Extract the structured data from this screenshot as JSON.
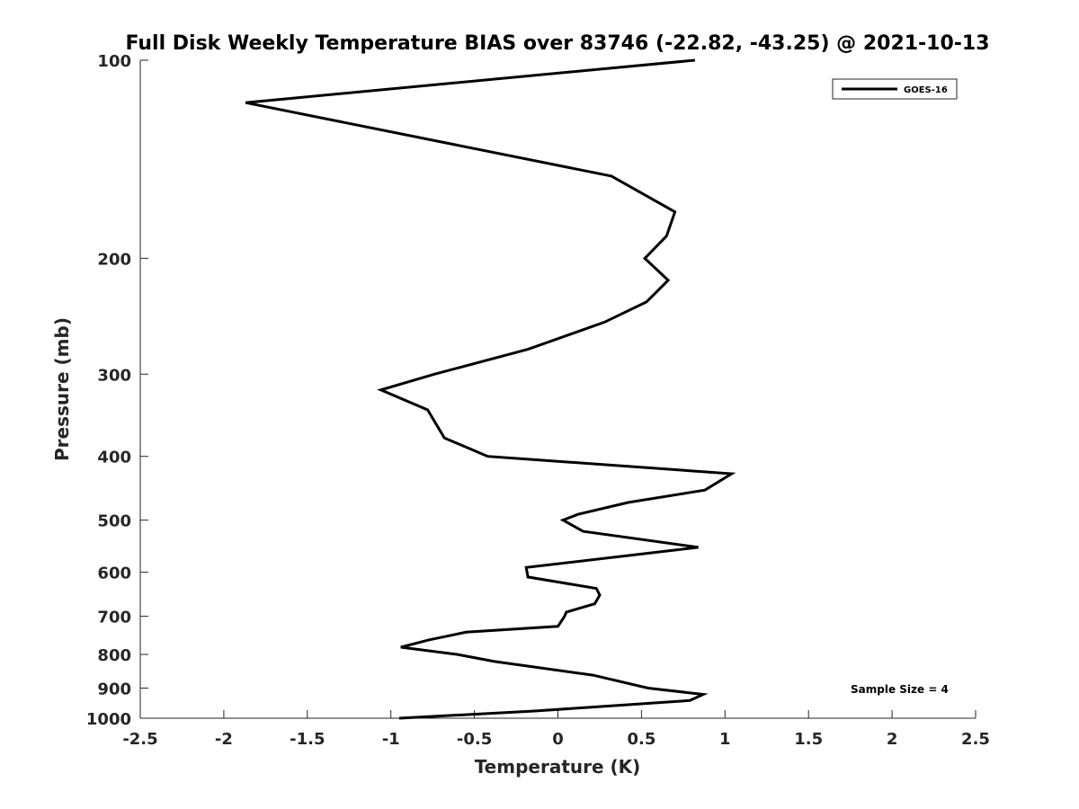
{
  "chart_data": {
    "type": "line",
    "title": "Full Disk Weekly Temperature BIAS over 83746 (-22.82, -43.25) @ 2021-10-13",
    "xlabel": "Temperature (K)",
    "ylabel": "Pressure (mb)",
    "xlim": [
      -2.5,
      2.5
    ],
    "ylim": [
      1000,
      100
    ],
    "yscale": "log",
    "y_reversed": true,
    "xticks": [
      -2.5,
      -2,
      -1.5,
      -1,
      -0.5,
      0,
      0.5,
      1,
      1.5,
      2,
      2.5
    ],
    "xtick_labels": [
      "-2.5",
      "-2",
      "-1.5",
      "-1",
      "-0.5",
      "0",
      "0.5",
      "1",
      "1.5",
      "2",
      "2.5"
    ],
    "yticks": [
      100,
      200,
      300,
      400,
      500,
      600,
      700,
      800,
      900,
      1000
    ],
    "ytick_labels": [
      "100",
      "200",
      "300",
      "400",
      "500",
      "600",
      "700",
      "800",
      "900",
      "1000"
    ],
    "grid": false,
    "legend_position": "top-right",
    "series": [
      {
        "name": "GOES-16",
        "color": "#000000",
        "points": [
          [
            0.82,
            100
          ],
          [
            -1.87,
            116
          ],
          [
            0.32,
            150
          ],
          [
            0.7,
            170
          ],
          [
            0.65,
            185
          ],
          [
            0.52,
            200
          ],
          [
            0.66,
            216
          ],
          [
            0.53,
            233
          ],
          [
            0.28,
            250
          ],
          [
            -0.18,
            275
          ],
          [
            -0.74,
            300
          ],
          [
            -1.06,
            317
          ],
          [
            -0.78,
            340
          ],
          [
            -0.68,
            375
          ],
          [
            -0.42,
            400
          ],
          [
            1.04,
            425
          ],
          [
            0.88,
            450
          ],
          [
            0.42,
            470
          ],
          [
            0.12,
            490
          ],
          [
            0.03,
            500
          ],
          [
            0.15,
            520
          ],
          [
            0.84,
            550
          ],
          [
            -0.19,
            590
          ],
          [
            -0.18,
            610
          ],
          [
            0.23,
            635
          ],
          [
            0.25,
            650
          ],
          [
            0.22,
            670
          ],
          [
            0.05,
            690
          ],
          [
            0.04,
            700
          ],
          [
            0.0,
            725
          ],
          [
            -0.55,
            740
          ],
          [
            -0.77,
            760
          ],
          [
            -0.94,
            780
          ],
          [
            -0.6,
            800
          ],
          [
            -0.38,
            820
          ],
          [
            0.21,
            860
          ],
          [
            0.54,
            900
          ],
          [
            0.87,
            920
          ],
          [
            0.79,
            940
          ],
          [
            -0.14,
            975
          ],
          [
            -0.95,
            1000
          ]
        ]
      }
    ],
    "annotations": [
      "Sample Size = 4"
    ]
  }
}
